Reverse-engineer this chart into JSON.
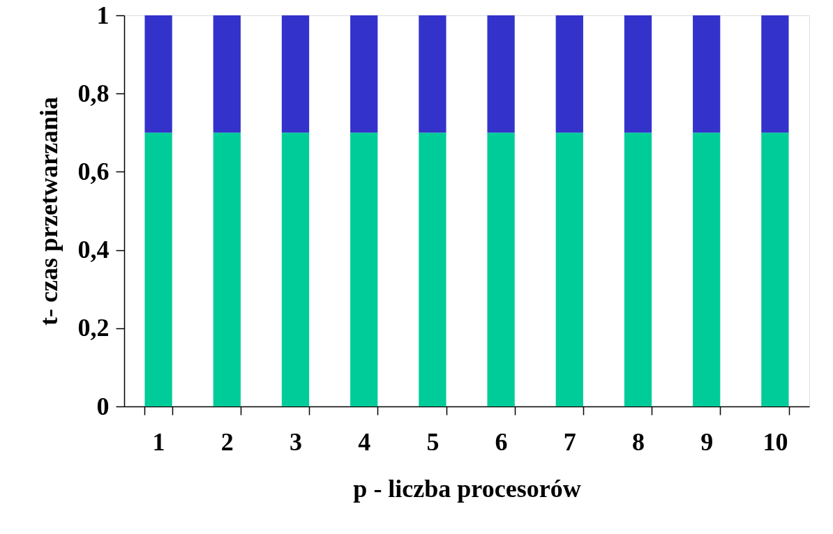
{
  "chart_data": {
    "type": "bar",
    "stacked": true,
    "xlabel": "p - liczba procesorów",
    "ylabel": "t- czas przetwarzania",
    "categories": [
      "1",
      "2",
      "3",
      "4",
      "5",
      "6",
      "7",
      "8",
      "9",
      "10"
    ],
    "series": [
      {
        "color": "#00cc99",
        "values": [
          0.7,
          0.7,
          0.7,
          0.7,
          0.7,
          0.7,
          0.7,
          0.7,
          0.7,
          0.7
        ]
      },
      {
        "color": "#3333cc",
        "values": [
          0.3,
          0.3,
          0.3,
          0.3,
          0.3,
          0.3,
          0.3,
          0.3,
          0.3,
          0.3
        ]
      }
    ],
    "ylim": [
      0,
      1
    ],
    "yticks": [
      0,
      {
        "value": 0.2,
        "label": "0,2"
      },
      {
        "value": 0.4,
        "label": "0,4"
      },
      {
        "value": 0.6,
        "label": "0,6"
      },
      {
        "value": 0.8,
        "label": "0,8"
      },
      1
    ],
    "grid": false,
    "legend": false
  }
}
